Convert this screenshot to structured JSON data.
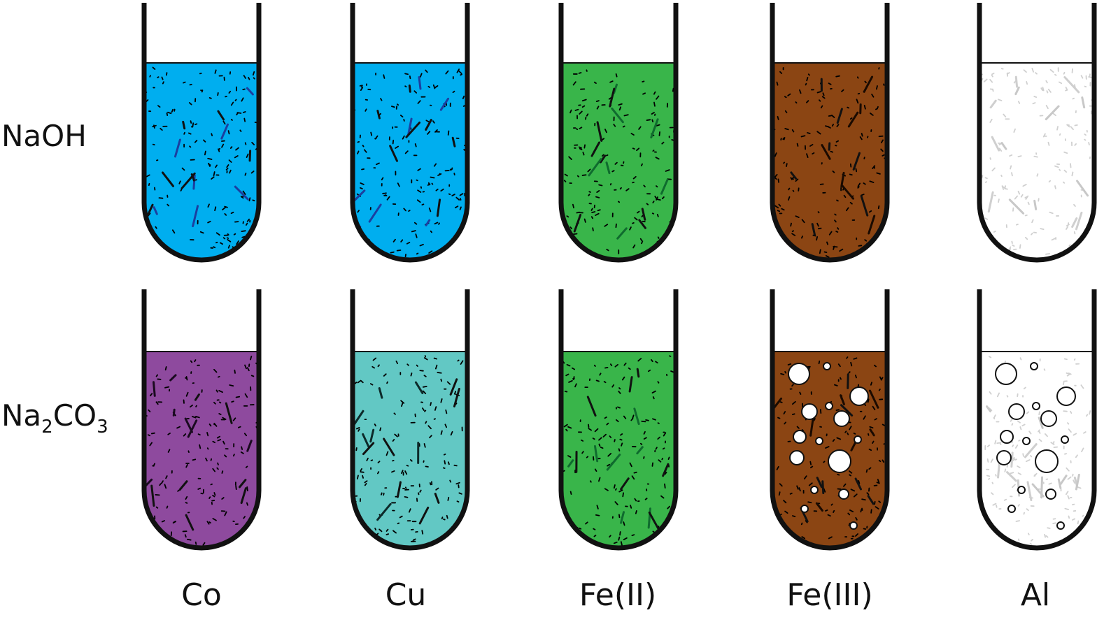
{
  "rows": [
    {
      "label": "NaOH",
      "formula_parts": []
    },
    {
      "label": "Na2CO3",
      "formula_parts": [
        {
          "text": "Na",
          "sub": false
        },
        {
          "text": "2",
          "sub": true
        },
        {
          "text": "CO",
          "sub": false
        },
        {
          "text": "3",
          "sub": true
        }
      ]
    }
  ],
  "columns": [
    {
      "label": "Co"
    },
    {
      "label": "Cu"
    },
    {
      "label": "Fe(II)"
    },
    {
      "label": "Fe(III)"
    },
    {
      "label": "Al"
    }
  ],
  "tubes": [
    [
      {
        "fill": "#00aeef",
        "speck": "#1b3fa0",
        "bubbles": false
      },
      {
        "fill": "#00aeef",
        "speck": "#1b3fa0",
        "bubbles": false
      },
      {
        "fill": "#39b54a",
        "speck": "#0f6b2e",
        "bubbles": false
      },
      {
        "fill": "#8b4513",
        "speck": "#1a0a00",
        "bubbles": false
      },
      {
        "fill": "#ffffff",
        "speck": "#c8c8c8",
        "bubbles": false
      }
    ],
    [
      {
        "fill": "#8e4a9e",
        "speck": "#1a0a20",
        "bubbles": false
      },
      {
        "fill": "#62c8c4",
        "speck": "#0d2a2a",
        "bubbles": false
      },
      {
        "fill": "#39b54a",
        "speck": "#0f6b2e",
        "bubbles": false
      },
      {
        "fill": "#8b4513",
        "speck": "#1a0a00",
        "bubbles": true
      },
      {
        "fill": "#ffffff",
        "speck": "#c8c8c8",
        "bubbles": true
      }
    ]
  ]
}
